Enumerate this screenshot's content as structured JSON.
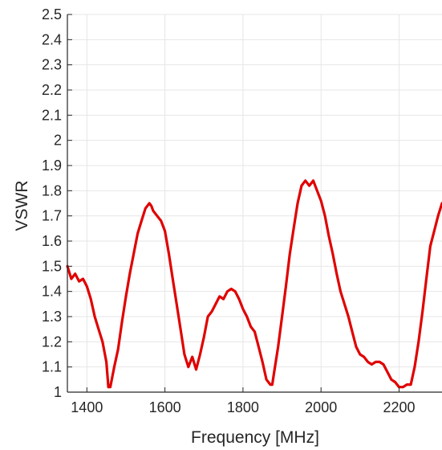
{
  "chart_data": {
    "type": "line",
    "xlabel": "Frequency [MHz]",
    "ylabel": "VSWR",
    "xlim": [
      1350,
      2310
    ],
    "ylim": [
      1,
      2.5
    ],
    "xticks": [
      1400,
      1600,
      1800,
      2000,
      2200
    ],
    "xtick_labels": [
      "1400",
      "1600",
      "1800",
      "2000",
      "2200"
    ],
    "yticks": [
      1,
      1.1,
      1.2,
      1.3,
      1.4,
      1.5,
      1.6,
      1.7,
      1.8,
      1.9,
      2,
      2.1,
      2.2,
      2.3,
      2.4,
      2.5
    ],
    "ytick_labels": [
      "1",
      "1.1",
      "1.2",
      "1.3",
      "1.4",
      "1.5",
      "1.6",
      "1.7",
      "1.8",
      "1.9",
      "2",
      "2.1",
      "2.2",
      "2.3",
      "2.4",
      "2.5"
    ],
    "grid": true,
    "colors": {
      "series": "#e00000",
      "grid": "#e6e6e6",
      "axis": "#262626"
    },
    "series": [
      {
        "x": [
          1350,
          1360,
          1370,
          1380,
          1390,
          1400,
          1410,
          1420,
          1430,
          1440,
          1450,
          1455,
          1460,
          1470,
          1480,
          1490,
          1500,
          1510,
          1520,
          1530,
          1540,
          1550,
          1560,
          1565,
          1570,
          1580,
          1590,
          1600,
          1610,
          1620,
          1630,
          1640,
          1650,
          1660,
          1670,
          1680,
          1690,
          1700,
          1710,
          1720,
          1730,
          1740,
          1750,
          1760,
          1770,
          1780,
          1790,
          1800,
          1810,
          1820,
          1830,
          1840,
          1850,
          1860,
          1870,
          1875,
          1880,
          1890,
          1900,
          1910,
          1920,
          1930,
          1940,
          1950,
          1960,
          1970,
          1980,
          1990,
          2000,
          2010,
          2020,
          2030,
          2040,
          2050,
          2060,
          2070,
          2080,
          2090,
          2100,
          2110,
          2120,
          2130,
          2140,
          2150,
          2160,
          2170,
          2180,
          2190,
          2200,
          2210,
          2220,
          2230,
          2240,
          2250,
          2260,
          2270,
          2280,
          2290,
          2300,
          2310
        ],
        "y": [
          1.5,
          1.45,
          1.47,
          1.44,
          1.45,
          1.42,
          1.37,
          1.3,
          1.25,
          1.2,
          1.12,
          1.02,
          1.02,
          1.1,
          1.17,
          1.28,
          1.38,
          1.47,
          1.55,
          1.63,
          1.68,
          1.73,
          1.75,
          1.74,
          1.72,
          1.7,
          1.68,
          1.64,
          1.55,
          1.45,
          1.35,
          1.25,
          1.15,
          1.1,
          1.14,
          1.09,
          1.15,
          1.22,
          1.3,
          1.32,
          1.35,
          1.38,
          1.37,
          1.4,
          1.41,
          1.4,
          1.37,
          1.33,
          1.3,
          1.26,
          1.24,
          1.18,
          1.12,
          1.05,
          1.03,
          1.03,
          1.08,
          1.18,
          1.3,
          1.42,
          1.55,
          1.65,
          1.75,
          1.82,
          1.84,
          1.82,
          1.84,
          1.8,
          1.76,
          1.7,
          1.62,
          1.55,
          1.47,
          1.4,
          1.35,
          1.3,
          1.24,
          1.18,
          1.15,
          1.14,
          1.12,
          1.11,
          1.12,
          1.12,
          1.11,
          1.08,
          1.05,
          1.04,
          1.02,
          1.02,
          1.03,
          1.03,
          1.1,
          1.2,
          1.32,
          1.45,
          1.58,
          1.64,
          1.7,
          1.75
        ]
      }
    ]
  }
}
